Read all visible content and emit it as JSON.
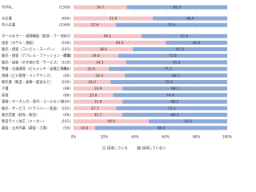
{
  "chart_data": {
    "type": "stacked-bar-horizontal",
    "categories": [
      "TOTAL",
      "大企業",
      "中小企業",
      "ホールセラー・調理補助（飲食・フード）",
      "接客（ホテル・旅館）",
      "販売・接客（コンビニ・スーパー）",
      "販売・接客（アパレル・ファッション・雑貨）",
      "販売・接客（その他小売・サービス）",
      "警備・交通誘導（ビルメンテ・設備工事等）",
      "清掃（ビル管理・メンテナンス）",
      "軽作業（製造・倉庫・配送など）",
      "介護",
      "保育",
      "事務・データ入力・受付・コールセンター",
      "販売・サービス（ドライバー・配送）",
      "販売営業（卸売・販売）",
      "製造ライン加工（メーカー）",
      "建設・土木作業（建設・工事）"
    ],
    "counts": [
      "(1509)",
      "(400)",
      "(1069)",
      "(302)",
      "(100)",
      "(101)",
      "(73)",
      "(129)",
      "(63)",
      "(60)",
      "(100)",
      "(88)",
      "(86)",
      "(110)",
      "(101)",
      "(69)",
      "(101)",
      "(50)"
    ],
    "series": [
      {
        "name": "採用している",
        "color": "#f3c5c8",
        "values": [
          34.7,
          51.6,
          27.6,
          44.1,
          60.0,
          38.6,
          29.0,
          34.1,
          22.9,
          33.3,
          24.0,
          31.9,
          25.6,
          31.8,
          27.7,
          31.7,
          49.0,
          14.0
        ],
        "value_labels": [
          "34.7",
          "51.6",
          "27.6",
          "44.1",
          "60.0",
          "38.6",
          "29.0",
          "34.1",
          "22.9",
          "33.3",
          "24.0",
          "31.9",
          "25.6",
          "31.8",
          "27.7",
          "31.7",
          "49.0",
          "14.0"
        ]
      },
      {
        "name": "採用していない",
        "color": "#8eabd8",
        "values": [
          65.3,
          48.4,
          72.4,
          55.9,
          40.0,
          61.4,
          71.0,
          65.9,
          77.1,
          66.7,
          76.0,
          68.1,
          74.4,
          68.2,
          72.3,
          68.3,
          51.0,
          86.0
        ],
        "value_labels": [
          "65.3",
          "48.4",
          "72.4",
          "55.9",
          "40.0",
          "61.4",
          "71.0",
          "65.9",
          "77.1",
          "66.7",
          "76.0",
          "68.1",
          "74.4",
          "68.2",
          "72.3",
          "68.3",
          "51.0",
          "86.0"
        ]
      }
    ],
    "xlim": [
      0,
      100
    ],
    "xticks": [
      {
        "value": 0,
        "label": "0%"
      },
      {
        "value": 20,
        "label": "20%"
      },
      {
        "value": 40,
        "label": "40%"
      },
      {
        "value": 60,
        "label": "60%"
      },
      {
        "value": 80,
        "label": "80%"
      },
      {
        "value": 100,
        "label": "100%"
      }
    ],
    "grid": true,
    "legend": "bottom"
  }
}
